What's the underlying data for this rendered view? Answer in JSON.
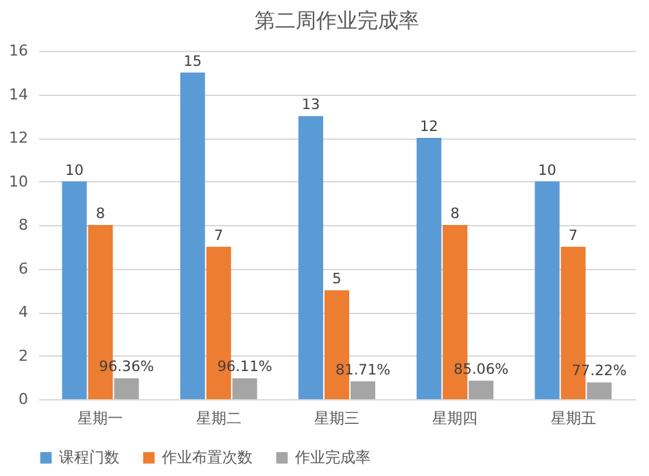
{
  "chart_data": {
    "type": "bar",
    "title": "第二周作业完成率",
    "categories": [
      "星期一",
      "星期二",
      "星期三",
      "星期四",
      "星期五"
    ],
    "series": [
      {
        "name": "课程门数",
        "color": "#5b9bd5",
        "values": [
          10,
          15,
          13,
          12,
          10
        ],
        "value_labels": [
          "10",
          "15",
          "13",
          "12",
          "10"
        ]
      },
      {
        "name": "作业布置次数",
        "color": "#ed7d31",
        "values": [
          8,
          7,
          5,
          8,
          7
        ],
        "value_labels": [
          "8",
          "7",
          "5",
          "8",
          "7"
        ]
      },
      {
        "name": "作业完成率",
        "color": "#a5a5a5",
        "values": [
          0.9636,
          0.9611,
          0.8171,
          0.8506,
          0.7722
        ],
        "value_labels": [
          "96.36%",
          "96.11%",
          "81.71%",
          "85.06%",
          "77.22%"
        ]
      }
    ],
    "ylim": [
      0,
      16
    ],
    "yticks": [
      0,
      2,
      4,
      6,
      8,
      10,
      12,
      14,
      16
    ],
    "grid": "y",
    "legend": "bottom"
  }
}
